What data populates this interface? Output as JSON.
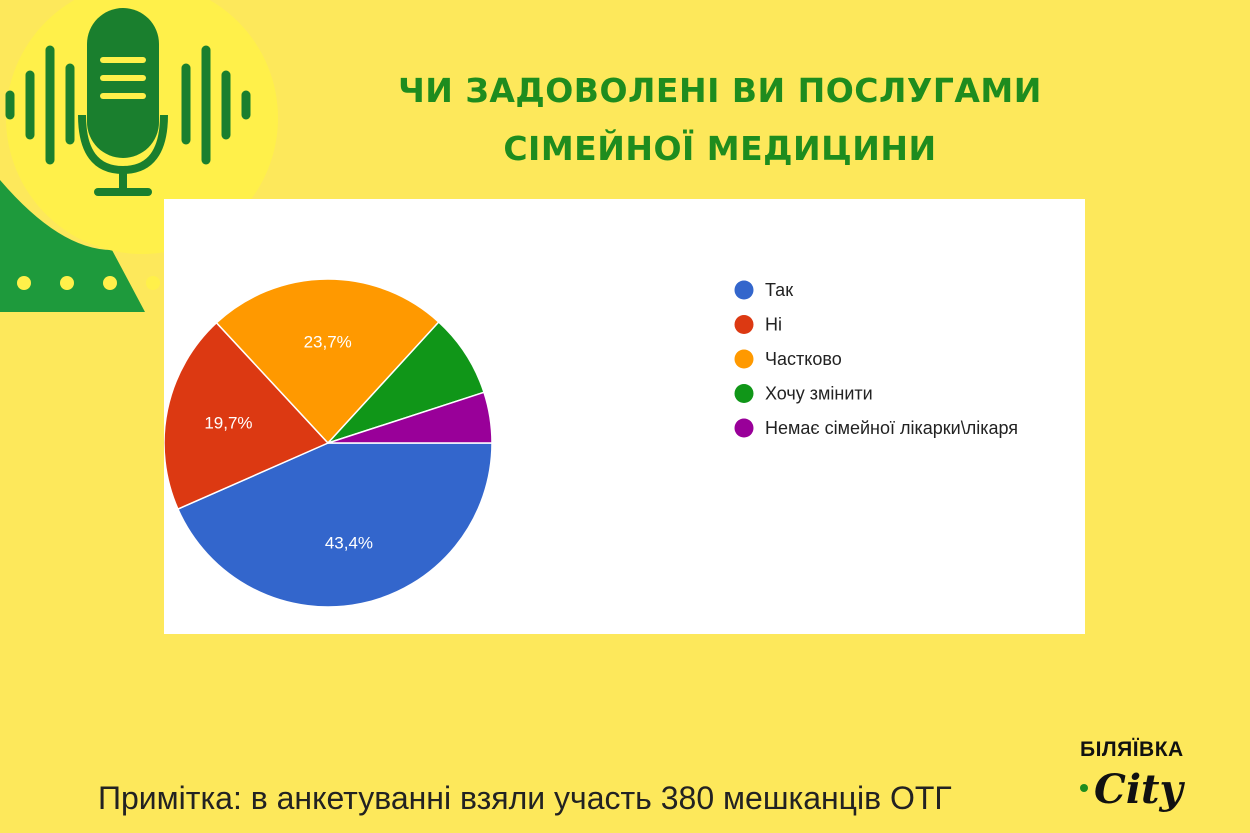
{
  "title_lines": [
    "Чи задоволені ви послугами",
    "сімейної медицини"
  ],
  "note": "Примітка: в анкетуванні взяли участь 380 мешканців ОТГ",
  "logo": {
    "top": "БІЛЯЇВКА",
    "bottom": "City"
  },
  "colors": {
    "background": "#FDE85B",
    "title": "#1E8C1E",
    "deco_circle": "#FFF04A",
    "deco_green": "#1E9A3C",
    "mic": "#1A7F2E"
  },
  "icons": [
    "microphone-icon",
    "sound-wave-icon"
  ],
  "chart_data": {
    "type": "pie",
    "title": "",
    "legend_position": "right",
    "series": [
      {
        "name": "Так",
        "value": 43.4,
        "label": "43,4%",
        "color": "#3366CC"
      },
      {
        "name": "Ні",
        "value": 19.7,
        "label": "19,7%",
        "color": "#DC3912"
      },
      {
        "name": "Частково",
        "value": 23.7,
        "label": "23,7%",
        "color": "#FF9900"
      },
      {
        "name": "Хочу змінити",
        "value": 8.2,
        "label": "",
        "color": "#109618"
      },
      {
        "name": "Немає сімейної лікарки\\лікаря",
        "value": 5.0,
        "label": "",
        "color": "#990099"
      }
    ]
  }
}
